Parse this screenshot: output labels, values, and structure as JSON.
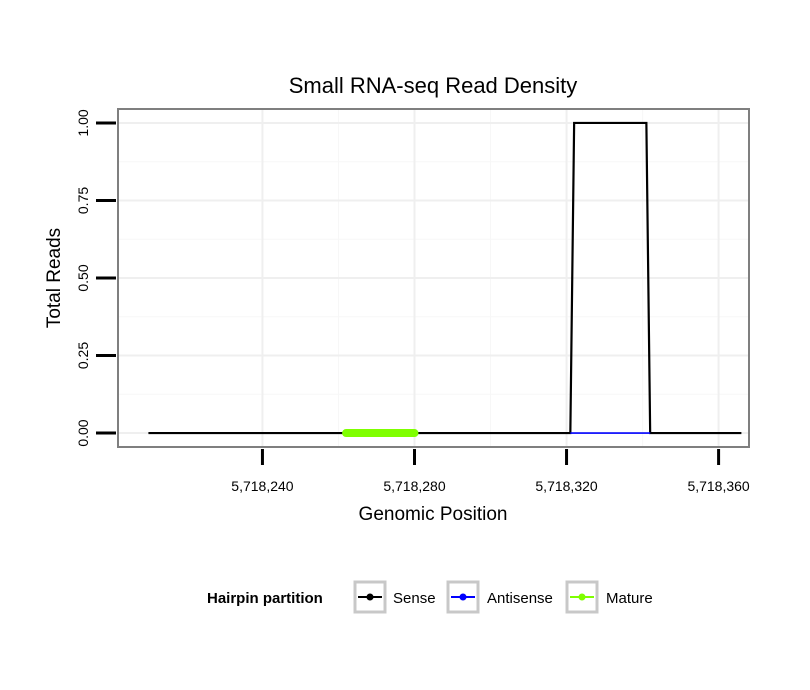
{
  "chart_data": {
    "type": "line",
    "title": "Small RNA-seq Read Density",
    "xlabel": "Genomic Position",
    "ylabel": "Total Reads",
    "xlim": [
      5718202,
      5718368
    ],
    "ylim": [
      -0.045,
      1.045
    ],
    "xticks": [
      5718240,
      5718280,
      5718320,
      5718360
    ],
    "xtick_labels": [
      "5,718,240",
      "5,718,280",
      "5,718,320",
      "5,718,360"
    ],
    "yticks": [
      0,
      0.25,
      0.5,
      0.75,
      1.0
    ],
    "ytick_labels": [
      "0.00",
      "0.25",
      "0.50",
      "0.75",
      "1.00"
    ],
    "grid": true,
    "legend": {
      "title": "Hairpin partition",
      "position": "bottom",
      "entries": [
        "Sense",
        "Antisense",
        "Mature"
      ]
    },
    "series": [
      {
        "name": "Sense",
        "color": "#000000",
        "x": [
          5718210,
          5718321,
          5718322,
          5718341,
          5718342,
          5718366
        ],
        "y": [
          0,
          0,
          1,
          1,
          0,
          0
        ]
      },
      {
        "name": "Antisense",
        "color": "#0000ff",
        "x": [
          5718321,
          5718342
        ],
        "y": [
          0,
          0
        ]
      },
      {
        "name": "Mature",
        "color": "#7fff00",
        "x": [
          5718262,
          5718280
        ],
        "y": [
          0,
          0
        ]
      }
    ]
  }
}
